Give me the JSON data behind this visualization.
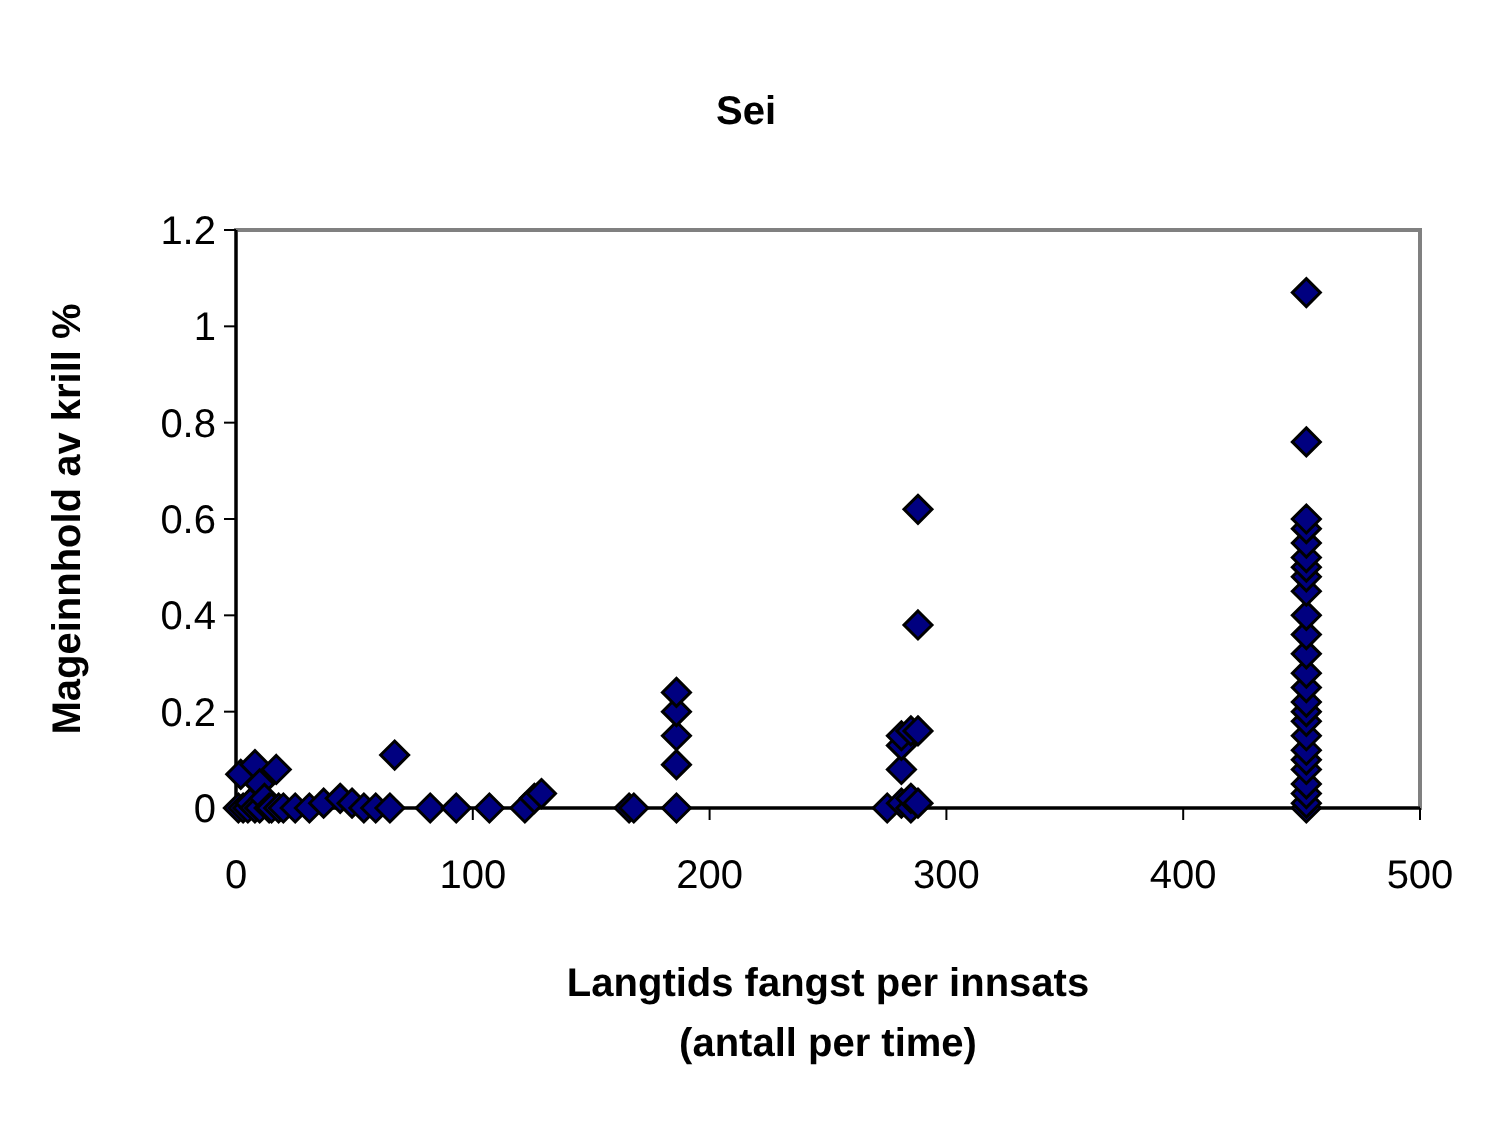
{
  "chart_data": {
    "type": "scatter",
    "title": "Sei",
    "xlabel": "Langtids fangst per innsats\n(antall per time)",
    "ylabel": "Mageinnhold av krill %",
    "xlim": [
      0,
      500
    ],
    "xticks": [
      0,
      100,
      200,
      300,
      400,
      500
    ],
    "ylim": [
      0,
      1.2
    ],
    "yticks": [
      0,
      0.2,
      0.4,
      0.6,
      0.8,
      1,
      1.2
    ],
    "marker": "diamond",
    "grid": false,
    "series": [
      {
        "color": "#000080",
        "x": [
          1,
          2,
          3,
          5,
          6,
          8,
          8,
          10,
          10,
          12,
          14,
          15,
          17,
          18,
          20,
          25,
          31,
          37,
          44,
          49,
          54,
          59,
          65,
          67,
          82,
          93,
          107,
          122,
          126,
          129,
          166,
          168,
          186,
          186,
          186,
          186,
          186,
          275,
          281,
          281,
          281,
          281,
          285,
          285,
          285,
          288,
          288,
          288,
          288,
          452,
          452,
          452,
          452,
          452,
          452,
          452,
          452,
          452,
          452,
          452,
          452,
          452,
          452,
          452,
          452,
          452,
          452,
          452,
          452,
          452,
          452,
          452,
          452,
          452
        ],
        "values": [
          0,
          0.07,
          0,
          0,
          0.01,
          0.09,
          0,
          0.05,
          0,
          0.02,
          0,
          0,
          0.08,
          0,
          0,
          0,
          0,
          0.01,
          0.02,
          0.01,
          0,
          0,
          0,
          0.11,
          0,
          0,
          0,
          0,
          0.02,
          0.03,
          0,
          0,
          0,
          0.09,
          0.15,
          0.2,
          0.24,
          0,
          0.01,
          0.08,
          0.13,
          0.15,
          0,
          0.02,
          0.16,
          0.01,
          0.16,
          0.38,
          0.62,
          0,
          0.01,
          0.03,
          0.05,
          0.08,
          0.1,
          0.12,
          0.15,
          0.18,
          0.2,
          0.22,
          0.25,
          0.28,
          0.32,
          0.36,
          0.4,
          0.45,
          0.48,
          0.5,
          0.52,
          0.55,
          0.58,
          0.6,
          0.76,
          1.07
        ]
      }
    ]
  }
}
